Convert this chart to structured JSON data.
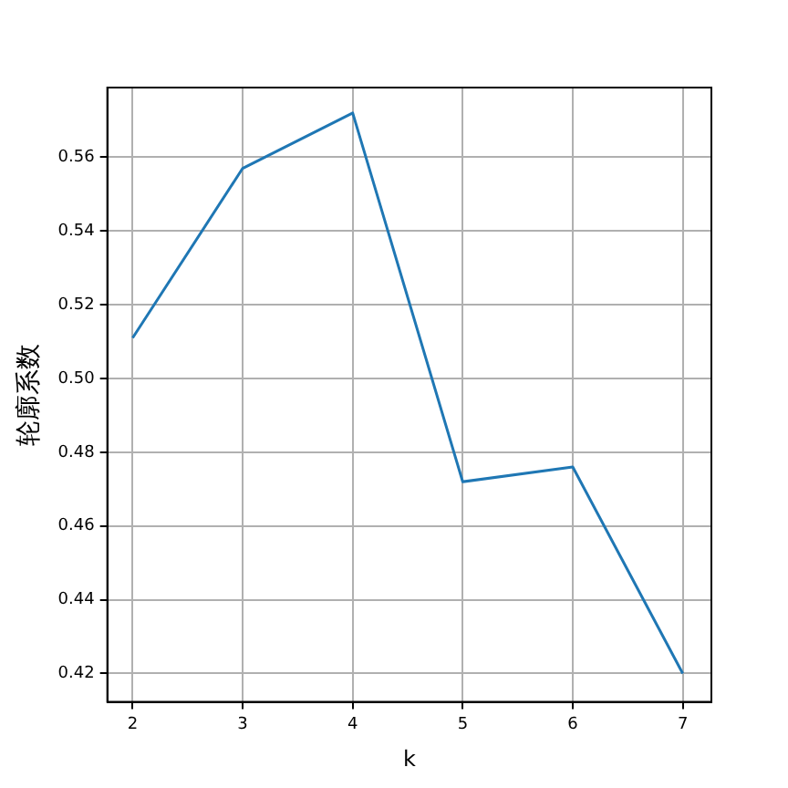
{
  "chart_data": {
    "type": "line",
    "xlabel": "k",
    "ylabel": "轮廓系数",
    "x": [
      2,
      3,
      4,
      5,
      6,
      7
    ],
    "series": [
      {
        "color": "#1f77b4",
        "values": [
          0.511,
          0.557,
          0.572,
          0.472,
          0.476,
          0.42
        ]
      }
    ],
    "xlim": [
      1.77,
      7.26
    ],
    "xticks": [
      2,
      3,
      4,
      5,
      6,
      7
    ],
    "ylim": [
      0.4123,
      0.5789
    ],
    "yticks": [
      0.42,
      0.44,
      0.46,
      0.48,
      {
        "value": 0.5,
        "label": "0.50"
      },
      0.52,
      0.54,
      0.56
    ],
    "grid": true,
    "legend": false,
    "marker": "none",
    "line_style": "solid"
  }
}
